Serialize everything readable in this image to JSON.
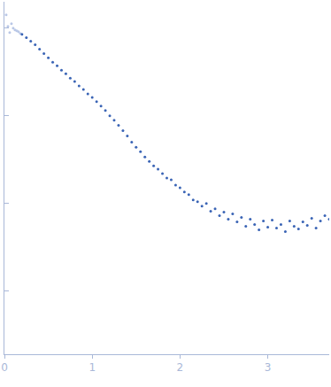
{
  "chart_data": {
    "type": "scatter",
    "series": [
      {
        "color": "#b9c7e6",
        "marker": "circle",
        "x": [
          0.02,
          0.04,
          0.06,
          0.08,
          0.1,
          0.12,
          0.14,
          0.16,
          0.18
        ],
        "values": [
          3.15,
          3.02,
          2.95,
          3.05,
          3.0,
          2.98,
          2.97,
          2.96,
          2.94
        ]
      },
      {
        "color": "#3a64b5",
        "marker": "circle",
        "x": [
          0.2,
          0.25,
          0.3,
          0.35,
          0.4,
          0.45,
          0.5,
          0.55,
          0.6,
          0.65,
          0.7,
          0.75,
          0.8,
          0.85,
          0.9,
          0.95,
          1.0,
          1.05,
          1.1,
          1.15,
          1.2,
          1.25,
          1.3,
          1.35,
          1.4,
          1.45,
          1.5,
          1.55,
          1.6,
          1.65,
          1.7,
          1.75,
          1.8,
          1.85,
          1.9,
          1.95,
          2.0,
          2.05,
          2.1,
          2.15,
          2.2,
          2.25,
          2.3,
          2.35,
          2.4,
          2.45,
          2.5,
          2.55,
          2.6,
          2.65,
          2.7,
          2.75,
          2.8,
          2.85,
          2.9,
          2.95,
          3.0,
          3.05,
          3.1,
          3.15,
          3.2,
          3.25,
          3.3,
          3.35,
          3.4,
          3.45,
          3.5,
          3.55,
          3.6,
          3.65,
          3.7
        ],
        "values": [
          2.93,
          2.89,
          2.85,
          2.81,
          2.76,
          2.71,
          2.66,
          2.61,
          2.57,
          2.52,
          2.48,
          2.43,
          2.39,
          2.34,
          2.3,
          2.25,
          2.21,
          2.16,
          2.11,
          2.06,
          2.0,
          1.95,
          1.89,
          1.83,
          1.77,
          1.7,
          1.64,
          1.59,
          1.53,
          1.48,
          1.43,
          1.39,
          1.34,
          1.29,
          1.27,
          1.21,
          1.18,
          1.13,
          1.1,
          1.04,
          1.02,
          0.97,
          1.0,
          0.91,
          0.94,
          0.86,
          0.9,
          0.82,
          0.88,
          0.79,
          0.84,
          0.74,
          0.82,
          0.76,
          0.7,
          0.8,
          0.73,
          0.81,
          0.72,
          0.76,
          0.68,
          0.8,
          0.74,
          0.71,
          0.79,
          0.75,
          0.83,
          0.72,
          0.8,
          0.86,
          0.82
        ]
      }
    ],
    "xlim": [
      0,
      3.7
    ],
    "xticks": [
      0,
      1,
      2,
      3
    ],
    "ylim": [
      -0.72,
      3.3
    ],
    "yticks": [
      0,
      1,
      2,
      3
    ],
    "grid": false,
    "tick_labels": "x"
  }
}
